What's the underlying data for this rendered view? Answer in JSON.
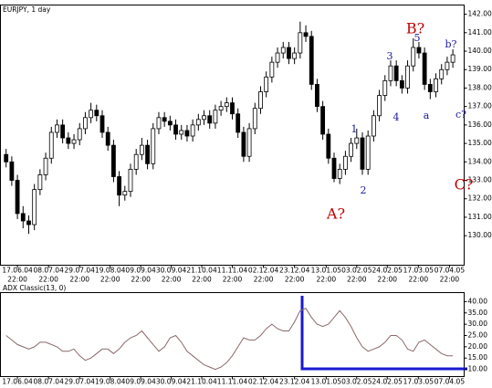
{
  "chart_data": [
    {
      "type": "candlestick",
      "title": "EURJPY, 1 day",
      "xlim": [
        -1,
        81
      ],
      "xticks": [
        {
          "value": 2,
          "label": "17.06.04"
        },
        {
          "value": 7.5,
          "label": "08.07.04"
        },
        {
          "value": 13,
          "label": "29.07.04"
        },
        {
          "value": 18.4,
          "label": "19.08.04"
        },
        {
          "value": 23.8,
          "label": "09.09.04"
        },
        {
          "value": 29.2,
          "label": "30.09.04"
        },
        {
          "value": 34.6,
          "label": "21.10.04"
        },
        {
          "value": 40,
          "label": "11.11.04"
        },
        {
          "value": 45.5,
          "label": "02.12.04"
        },
        {
          "value": 51,
          "label": "23.12.04"
        },
        {
          "value": 56.6,
          "label": "13.01.05"
        },
        {
          "value": 62,
          "label": "03.02.05"
        },
        {
          "value": 67.4,
          "label": "24.02.05"
        },
        {
          "value": 72.9,
          "label": "17.03.05"
        },
        {
          "value": 78.4,
          "label": "07.04.05"
        }
      ],
      "xtick_time": "22:00",
      "ylim": [
        128.4,
        142.5
      ],
      "yticks": [
        {
          "value": 130,
          "label": "130.00"
        },
        {
          "value": 131,
          "label": "131.00"
        },
        {
          "value": 132,
          "label": "132.00"
        },
        {
          "value": 133,
          "label": "133.00"
        },
        {
          "value": 134,
          "label": "134.00"
        },
        {
          "value": 135,
          "label": "135.00"
        },
        {
          "value": 136,
          "label": "136.00"
        },
        {
          "value": 137,
          "label": "137.00"
        },
        {
          "value": 138,
          "label": "138.00"
        },
        {
          "value": 139,
          "label": "139.00"
        },
        {
          "value": 140,
          "label": "140.00"
        },
        {
          "value": 141,
          "label": "141.00"
        },
        {
          "value": 142,
          "label": "142.00"
        }
      ],
      "color": "#000000",
      "candles": [
        [
          134.4,
          134.7,
          133.7,
          134.0
        ],
        [
          134.0,
          134.3,
          132.7,
          133.0
        ],
        [
          133.0,
          133.3,
          130.9,
          131.2
        ],
        [
          131.2,
          131.6,
          130.4,
          130.8
        ],
        [
          130.8,
          131.1,
          130.1,
          130.6
        ],
        [
          130.6,
          132.8,
          130.3,
          132.5
        ],
        [
          132.5,
          133.6,
          132.2,
          133.3
        ],
        [
          133.3,
          134.5,
          133.0,
          134.2
        ],
        [
          134.2,
          135.9,
          133.9,
          135.6
        ],
        [
          135.6,
          136.3,
          135.3,
          136.0
        ],
        [
          136.0,
          136.3,
          135.0,
          135.3
        ],
        [
          135.3,
          135.6,
          134.7,
          135.0
        ],
        [
          135.0,
          135.5,
          134.7,
          135.2
        ],
        [
          135.2,
          136.1,
          134.9,
          135.8
        ],
        [
          135.8,
          136.7,
          135.5,
          136.4
        ],
        [
          136.4,
          137.2,
          136.1,
          136.8
        ],
        [
          136.8,
          137.1,
          136.2,
          136.5
        ],
        [
          136.5,
          136.8,
          135.3,
          135.6
        ],
        [
          135.6,
          135.9,
          134.6,
          134.9
        ],
        [
          134.9,
          135.2,
          132.9,
          133.2
        ],
        [
          133.2,
          133.5,
          131.6,
          132.2
        ],
        [
          132.2,
          132.7,
          131.9,
          132.4
        ],
        [
          132.4,
          133.9,
          132.1,
          133.6
        ],
        [
          133.6,
          134.7,
          133.3,
          134.4
        ],
        [
          134.4,
          135.3,
          134.1,
          134.9
        ],
        [
          134.9,
          135.2,
          133.6,
          133.9
        ],
        [
          133.9,
          136.1,
          133.6,
          135.8
        ],
        [
          135.8,
          136.7,
          135.5,
          136.4
        ],
        [
          136.4,
          136.7,
          135.9,
          136.2
        ],
        [
          136.2,
          136.5,
          135.7,
          136.0
        ],
        [
          136.0,
          136.3,
          135.2,
          135.5
        ],
        [
          135.5,
          136.0,
          135.2,
          135.7
        ],
        [
          135.7,
          136.0,
          135.1,
          135.4
        ],
        [
          135.4,
          136.3,
          135.1,
          136.0
        ],
        [
          136.0,
          136.6,
          135.7,
          136.3
        ],
        [
          136.3,
          136.8,
          136.0,
          136.5
        ],
        [
          136.5,
          136.8,
          135.8,
          136.1
        ],
        [
          136.1,
          137.1,
          135.8,
          136.8
        ],
        [
          136.8,
          137.3,
          136.5,
          137.0
        ],
        [
          137.0,
          137.5,
          136.7,
          137.2
        ],
        [
          137.2,
          137.5,
          136.3,
          136.6
        ],
        [
          136.6,
          136.9,
          135.3,
          135.6
        ],
        [
          135.6,
          135.9,
          134.0,
          134.3
        ],
        [
          134.3,
          136.1,
          134.0,
          135.8
        ],
        [
          135.8,
          137.2,
          135.5,
          136.9
        ],
        [
          136.9,
          138.1,
          136.6,
          137.8
        ],
        [
          137.8,
          138.9,
          137.5,
          138.6
        ],
        [
          138.6,
          139.7,
          138.3,
          139.4
        ],
        [
          139.4,
          140.2,
          139.1,
          139.9
        ],
        [
          139.9,
          140.5,
          139.6,
          140.2
        ],
        [
          140.2,
          140.5,
          139.3,
          139.6
        ],
        [
          139.6,
          140.2,
          139.3,
          139.9
        ],
        [
          139.9,
          141.6,
          139.6,
          141.0
        ],
        [
          141.0,
          141.4,
          140.5,
          140.8
        ],
        [
          140.8,
          141.1,
          137.9,
          138.2
        ],
        [
          138.2,
          138.5,
          136.7,
          137.0
        ],
        [
          137.0,
          137.3,
          135.2,
          135.5
        ],
        [
          135.5,
          135.8,
          133.9,
          134.2
        ],
        [
          134.2,
          134.5,
          132.9,
          133.1
        ],
        [
          133.1,
          133.9,
          132.8,
          133.6
        ],
        [
          133.6,
          134.6,
          133.3,
          134.3
        ],
        [
          134.3,
          135.3,
          134.0,
          135.0
        ],
        [
          135.0,
          135.8,
          134.7,
          135.3
        ],
        [
          135.3,
          135.6,
          133.3,
          133.6
        ],
        [
          133.6,
          135.7,
          133.3,
          135.4
        ],
        [
          135.4,
          136.8,
          135.1,
          136.5
        ],
        [
          136.5,
          137.9,
          136.2,
          137.6
        ],
        [
          137.6,
          138.7,
          137.3,
          138.4
        ],
        [
          138.4,
          139.5,
          138.1,
          139.2
        ],
        [
          139.2,
          139.5,
          138.1,
          138.4
        ],
        [
          138.4,
          138.7,
          137.7,
          138.0
        ],
        [
          138.0,
          139.5,
          137.7,
          139.2
        ],
        [
          139.2,
          140.7,
          138.9,
          140.2
        ],
        [
          140.2,
          140.5,
          139.6,
          139.9
        ],
        [
          139.9,
          140.2,
          137.9,
          138.2
        ],
        [
          138.2,
          138.5,
          137.4,
          137.8
        ],
        [
          137.8,
          138.8,
          137.5,
          138.5
        ],
        [
          138.5,
          139.3,
          138.2,
          139.0
        ],
        [
          139.0,
          139.7,
          138.7,
          139.4
        ],
        [
          139.4,
          140.1,
          139.1,
          139.8
        ]
      ],
      "annotations": [
        {
          "text": "A?",
          "color": "#c00000"
        },
        {
          "text": "B?",
          "color": "#c00000"
        },
        {
          "text": "C?",
          "color": "#c00000"
        },
        {
          "text": "1",
          "color": "#1a1a9a"
        },
        {
          "text": "2",
          "color": "#1a1a9a"
        },
        {
          "text": "3",
          "color": "#1a1a9a"
        },
        {
          "text": "4",
          "color": "#1a1a9a"
        },
        {
          "text": "5",
          "color": "#1a1a9a"
        },
        {
          "text": "a",
          "color": "#1a1a9a"
        },
        {
          "text": "b?",
          "color": "#1a1a9a"
        },
        {
          "text": "c?",
          "color": "#1a1a9a"
        }
      ]
    },
    {
      "type": "line",
      "title": "ADX Classic(13, 0)",
      "xlim": [
        -1,
        81
      ],
      "xticks": [
        {
          "value": 2,
          "label": "17.06.04"
        },
        {
          "value": 7.5,
          "label": "08.07.04"
        },
        {
          "value": 13,
          "label": "29.07.04"
        },
        {
          "value": 18.4,
          "label": "19.08.04"
        },
        {
          "value": 23.8,
          "label": "09.09.04"
        },
        {
          "value": 29.2,
          "label": "30.09.04"
        },
        {
          "value": 34.6,
          "label": "21.10.04"
        },
        {
          "value": 40,
          "label": "11.11.04"
        },
        {
          "value": 45.5,
          "label": "02.12.04"
        },
        {
          "value": 51,
          "label": "23.12.04"
        },
        {
          "value": 56.6,
          "label": "13.01.05"
        },
        {
          "value": 62,
          "label": "03.02.05"
        },
        {
          "value": 67.4,
          "label": "24.02.05"
        },
        {
          "value": 72.9,
          "label": "17.03.05"
        },
        {
          "value": 78.4,
          "label": "07.04.05"
        }
      ],
      "ylim": [
        6.8,
        44
      ],
      "yticks": [
        {
          "value": 10,
          "label": "10.00"
        },
        {
          "value": 15,
          "label": "15.00"
        },
        {
          "value": 20,
          "label": "20.00"
        },
        {
          "value": 25,
          "label": "25.00"
        },
        {
          "value": 30,
          "label": "30.00"
        },
        {
          "value": 35,
          "label": "35.00"
        },
        {
          "value": 40,
          "label": "40.00"
        }
      ],
      "color": "#8a6a6a",
      "values": [
        25,
        23,
        21,
        20,
        19,
        20,
        22,
        22,
        21,
        20,
        18,
        18,
        19,
        16,
        14,
        15,
        17,
        19,
        19,
        17,
        19,
        22,
        24,
        25,
        27,
        24,
        21,
        18,
        20,
        24,
        25,
        22,
        18,
        16,
        14,
        12,
        11,
        10,
        11,
        13,
        16,
        20,
        24,
        23,
        23,
        25,
        28,
        30,
        28,
        27,
        27,
        31,
        36,
        37,
        33,
        30,
        29,
        30,
        33,
        36,
        33,
        29,
        24,
        20,
        18,
        19,
        20,
        22,
        25,
        25,
        23,
        19,
        18,
        22,
        23,
        21,
        19,
        17,
        16,
        16
      ]
    }
  ]
}
